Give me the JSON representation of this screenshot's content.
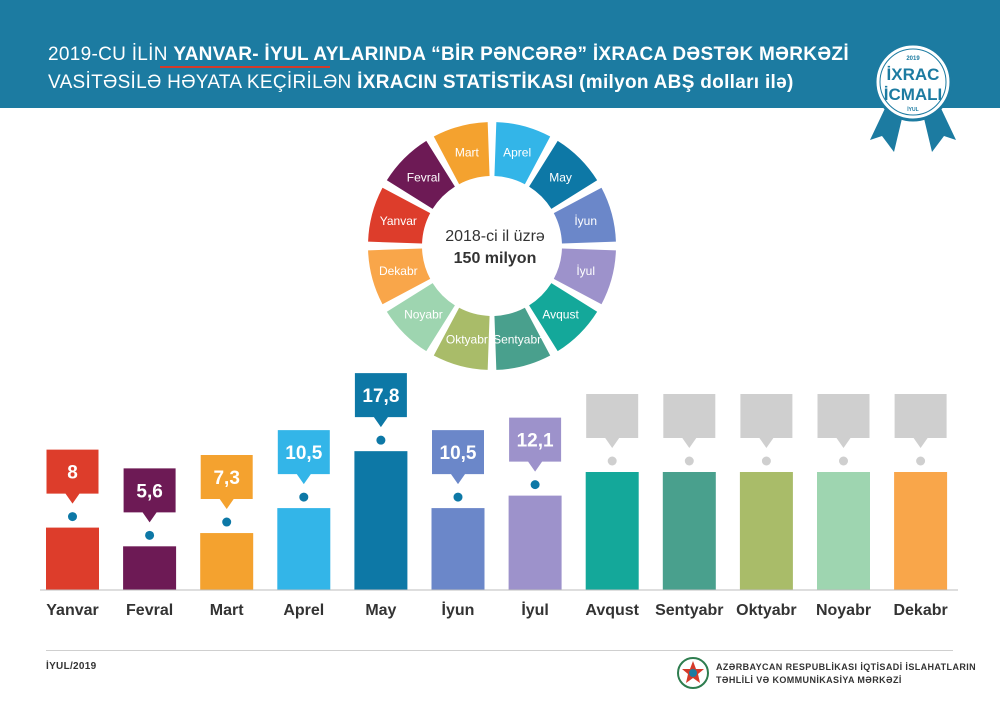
{
  "header": {
    "line1_pre": "2019-CU İLİN ",
    "line1_bold": "YANVAR- İYUL AYLARINDA “BİR PƏNCƏRƏ” İXRACA DƏSTƏK MƏRKƏZİ",
    "line2_pre": "VASİTƏSİLƏ HƏYATA KEÇİRİLƏN ",
    "line2_bold": "İXRACIN STATİSTİKASI (milyon ABŞ dolları ilə)"
  },
  "badge": {
    "year": "2019",
    "line1": "İXRAC",
    "line2": "İCMALI",
    "sub": "İYUL"
  },
  "wheel": {
    "center_line1": "2018-ci il üzrə",
    "center_line2": "150 milyon",
    "segments": [
      {
        "label": "Aprel",
        "color": "#33b5e8"
      },
      {
        "label": "May",
        "color": "#0d78a6"
      },
      {
        "label": "İyun",
        "color": "#6b87c9"
      },
      {
        "label": "İyul",
        "color": "#9d92cb"
      },
      {
        "label": "Avqust",
        "color": "#14a89a"
      },
      {
        "label": "Sentyabr",
        "color": "#49a08d"
      },
      {
        "label": "Oktyabr",
        "color": "#a9bc69"
      },
      {
        "label": "Noyabr",
        "color": "#9ed5b0"
      },
      {
        "label": "Dekabr",
        "color": "#f9a64a"
      },
      {
        "label": "Yanvar",
        "color": "#dd3d2b"
      },
      {
        "label": "Fevral",
        "color": "#6d1a55"
      },
      {
        "label": "Mart",
        "color": "#f4a22f"
      }
    ]
  },
  "chart_data": {
    "type": "bar",
    "title": "",
    "xlabel": "",
    "ylabel": "",
    "categories": [
      "Yanvar",
      "Fevral",
      "Mart",
      "Aprel",
      "May",
      "İyun",
      "İyul",
      "Avqust",
      "Sentyabr",
      "Oktyabr",
      "Noyabr",
      "Dekabr"
    ],
    "values": [
      8,
      5.6,
      7.3,
      10.5,
      17.8,
      10.5,
      12.1,
      null,
      null,
      null,
      null,
      null
    ],
    "value_labels": [
      "8",
      "5,6",
      "7,3",
      "10,5",
      "17,8",
      "10,5",
      "12,1",
      "",
      "",
      "",
      "",
      ""
    ],
    "colors": [
      "#dd3d2b",
      "#6d1a55",
      "#f4a22f",
      "#33b5e8",
      "#0d78a6",
      "#6b87c9",
      "#9d92cb",
      "#14a89a",
      "#49a08d",
      "#a9bc69",
      "#9ed5b0",
      "#f9a64a"
    ],
    "placeholder_color": "#cfcfcf",
    "dot_color": "#0d78a6",
    "grid": false
  },
  "footer": {
    "date": "İYUL/2019",
    "org_line1": "AZƏRBAYCAN RESPUBLİKASI İQTİSADİ İSLAHATLARIN",
    "org_line2": "TƏHLİLİ VƏ KOMMUNİKASİYA MƏRKƏZİ"
  }
}
